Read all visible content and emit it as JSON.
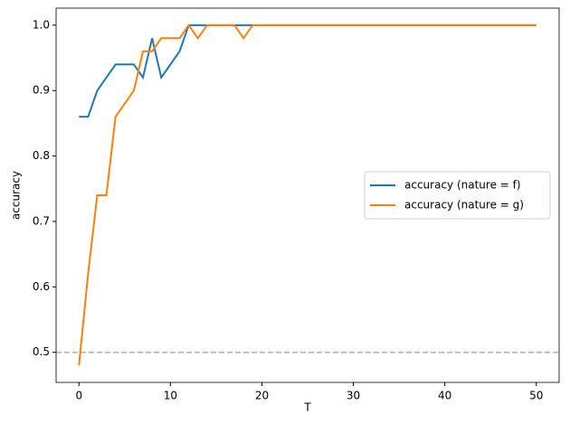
{
  "chart_data": {
    "type": "line",
    "xlabel": "T",
    "ylabel": "accuracy",
    "x": [
      0,
      1,
      2,
      3,
      4,
      5,
      6,
      7,
      8,
      9,
      10,
      11,
      12,
      13,
      14,
      15,
      16,
      17,
      18,
      19,
      20,
      21,
      22,
      23,
      24,
      25,
      26,
      27,
      28,
      29,
      30,
      31,
      32,
      33,
      34,
      35,
      36,
      37,
      38,
      39,
      40,
      41,
      42,
      43,
      44,
      45,
      46,
      47,
      48,
      49,
      50
    ],
    "series": [
      {
        "name": "accuracy (nature = f)",
        "color": "#1f77b4",
        "values": [
          0.86,
          0.86,
          0.9,
          0.92,
          0.94,
          0.94,
          0.94,
          0.92,
          0.98,
          0.92,
          0.94,
          0.96,
          1.0,
          1.0,
          1.0,
          1.0,
          1.0,
          1.0,
          1.0,
          1.0,
          1.0,
          1.0,
          1.0,
          1.0,
          1.0,
          1.0,
          1.0,
          1.0,
          1.0,
          1.0,
          1.0,
          1.0,
          1.0,
          1.0,
          1.0,
          1.0,
          1.0,
          1.0,
          1.0,
          1.0,
          1.0,
          1.0,
          1.0,
          1.0,
          1.0,
          1.0,
          1.0,
          1.0,
          1.0,
          1.0,
          1.0
        ]
      },
      {
        "name": "accuracy (nature = g)",
        "color": "#ff7f0e",
        "values": [
          0.48,
          0.62,
          0.74,
          0.74,
          0.86,
          0.88,
          0.9,
          0.96,
          0.96,
          0.98,
          0.98,
          0.98,
          1.0,
          0.98,
          1.0,
          1.0,
          1.0,
          1.0,
          0.98,
          1.0,
          1.0,
          1.0,
          1.0,
          1.0,
          1.0,
          1.0,
          1.0,
          1.0,
          1.0,
          1.0,
          1.0,
          1.0,
          1.0,
          1.0,
          1.0,
          1.0,
          1.0,
          1.0,
          1.0,
          1.0,
          1.0,
          1.0,
          1.0,
          1.0,
          1.0,
          1.0,
          1.0,
          1.0,
          1.0,
          1.0,
          1.0
        ]
      }
    ],
    "hline": {
      "value": 0.5,
      "color": "#b0b0b0"
    },
    "xlim": [
      -2.5,
      52.5
    ],
    "ylim": [
      0.454,
      1.026
    ],
    "xticks": [
      0,
      10,
      20,
      30,
      40,
      50
    ],
    "yticks": [
      0.5,
      0.6,
      0.7,
      0.8,
      0.9,
      {
        "value": 1,
        "label": "1.0"
      }
    ],
    "legend": "right"
  }
}
